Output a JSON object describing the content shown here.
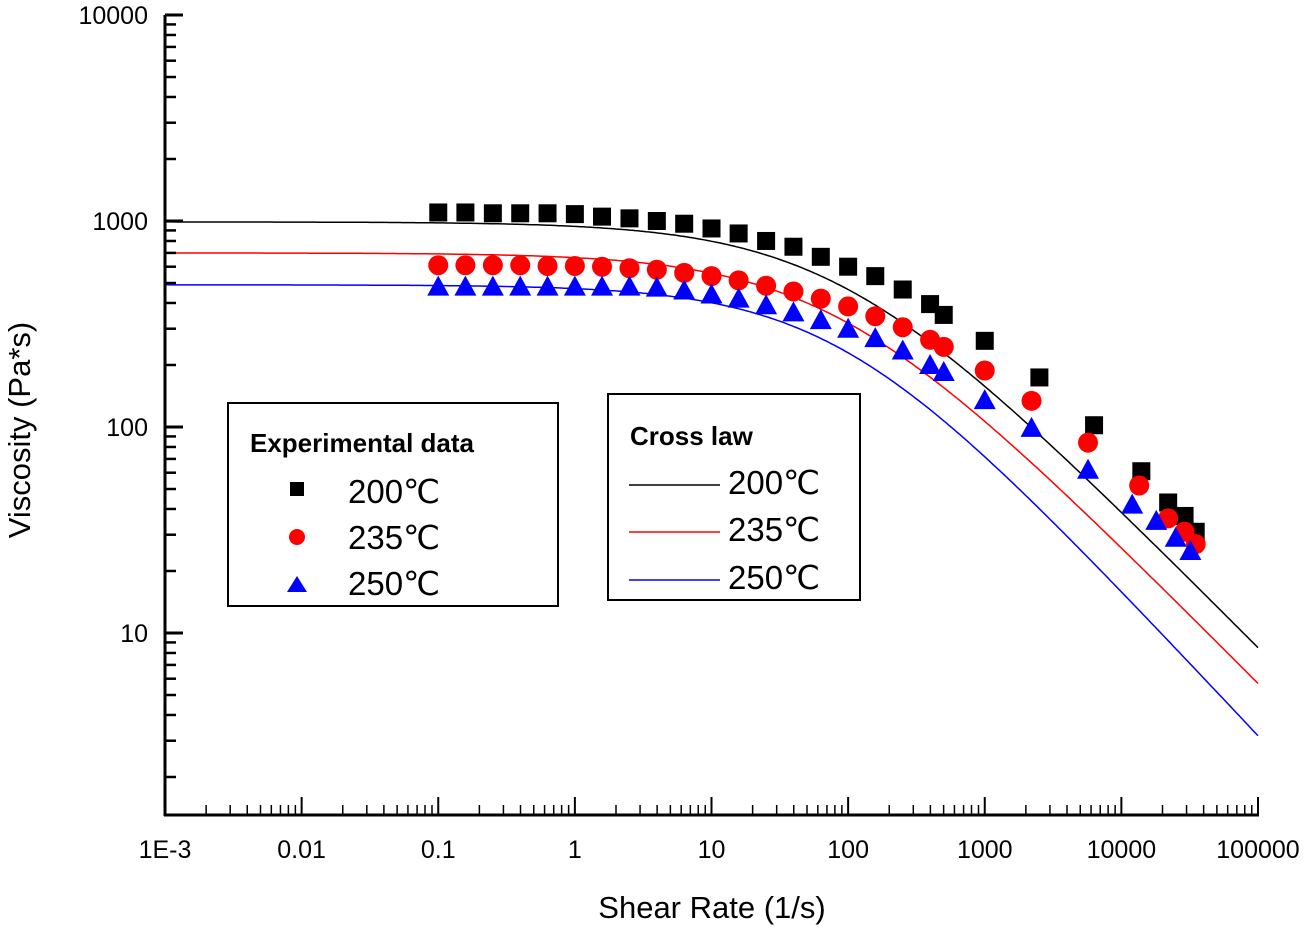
{
  "chart_data": {
    "type": "scatter",
    "title": "",
    "xlabel": "Shear Rate (1/s)",
    "ylabel": "Viscosity (Pa*s)",
    "xscale": "log",
    "yscale": "log",
    "xlim": [
      0.001,
      100000
    ],
    "ylim": [
      1.3,
      10000
    ],
    "x_tick_labels": [
      "1E-3",
      "0.01",
      "0.1",
      "1",
      "10",
      "100",
      "1000",
      "10000",
      "100000"
    ],
    "x_ticks": [
      0.001,
      0.01,
      0.1,
      1,
      10,
      100,
      1000,
      10000,
      100000
    ],
    "y_tick_labels": [
      "10",
      "100",
      "1000",
      "10000"
    ],
    "y_ticks": [
      10,
      100,
      1000,
      10000
    ],
    "grid": false,
    "legends": [
      {
        "title": "Experimental data",
        "placement": "center-left",
        "entries": [
          {
            "label": "200℃",
            "marker": "square",
            "color": "#000000"
          },
          {
            "label": "235℃",
            "marker": "circle",
            "color": "#ff0000"
          },
          {
            "label": "250℃",
            "marker": "triangle",
            "color": "#0000ff"
          }
        ]
      },
      {
        "title": "Cross law",
        "placement": "center",
        "entries": [
          {
            "label": "200℃",
            "line": true,
            "color": "#000000"
          },
          {
            "label": "235℃",
            "line": true,
            "color": "#ff0000"
          },
          {
            "label": "250℃",
            "line": true,
            "color": "#0000ff"
          }
        ]
      }
    ],
    "series": [
      {
        "name": "Experimental 200℃",
        "kind": "points",
        "marker": "square",
        "color": "#000000",
        "x": [
          0.1,
          0.158,
          0.251,
          0.398,
          0.631,
          1,
          1.58,
          2.51,
          3.98,
          6.31,
          10,
          15.8,
          25.1,
          39.8,
          63.1,
          100,
          158,
          251,
          398,
          501,
          1000,
          2512,
          6310,
          14000,
          22000,
          29000,
          35000
        ],
        "y": [
          1100,
          1100,
          1090,
          1090,
          1090,
          1080,
          1050,
          1030,
          1000,
          970,
          920,
          870,
          800,
          750,
          670,
          600,
          540,
          465,
          395,
          350,
          262,
          174,
          102,
          61,
          43,
          37,
          31
        ]
      },
      {
        "name": "Experimental 235℃",
        "kind": "points",
        "marker": "circle",
        "color": "#ff0000",
        "x": [
          0.1,
          0.158,
          0.251,
          0.398,
          0.631,
          1,
          1.58,
          2.51,
          3.98,
          6.31,
          10,
          15.8,
          25.1,
          39.8,
          63.1,
          100,
          158,
          251,
          398,
          501,
          1000,
          2200,
          5700,
          13500,
          22000,
          29000,
          35000
        ],
        "y": [
          610,
          610,
          610,
          610,
          605,
          605,
          600,
          590,
          580,
          560,
          540,
          515,
          485,
          455,
          420,
          385,
          345,
          305,
          265,
          245,
          188,
          134,
          84,
          52,
          36,
          31,
          27
        ]
      },
      {
        "name": "Experimental 250℃",
        "kind": "points",
        "marker": "triangle",
        "color": "#0000ff",
        "x": [
          0.1,
          0.158,
          0.251,
          0.398,
          0.631,
          1,
          1.58,
          2.51,
          3.98,
          6.31,
          10,
          15.8,
          25.1,
          39.8,
          63.1,
          100,
          158,
          251,
          398,
          501,
          1000,
          2200,
          5700,
          12000,
          18000,
          25000,
          32000
        ],
        "y": [
          480,
          480,
          480,
          480,
          480,
          480,
          480,
          480,
          475,
          460,
          440,
          420,
          390,
          360,
          330,
          300,
          270,
          235,
          200,
          185,
          135,
          99,
          62,
          42,
          35,
          29,
          25
        ]
      },
      {
        "name": "Cross law 200℃",
        "kind": "line",
        "color": "#000000",
        "model": {
          "eta0": 990,
          "lambda": 0.012,
          "n": 0.33
        },
        "x_range": [
          0.001,
          100000
        ]
      },
      {
        "name": "Cross law 235℃",
        "kind": "line",
        "color": "#ff0000",
        "model": {
          "eta0": 700,
          "lambda": 0.013,
          "n": 0.33
        },
        "x_range": [
          0.001,
          100000
        ]
      },
      {
        "name": "Cross law 250℃",
        "kind": "line",
        "color": "#0000ff",
        "model": {
          "eta0": 490,
          "lambda": 0.012,
          "n": 0.29
        },
        "x_range": [
          0.001,
          100000
        ]
      }
    ]
  }
}
